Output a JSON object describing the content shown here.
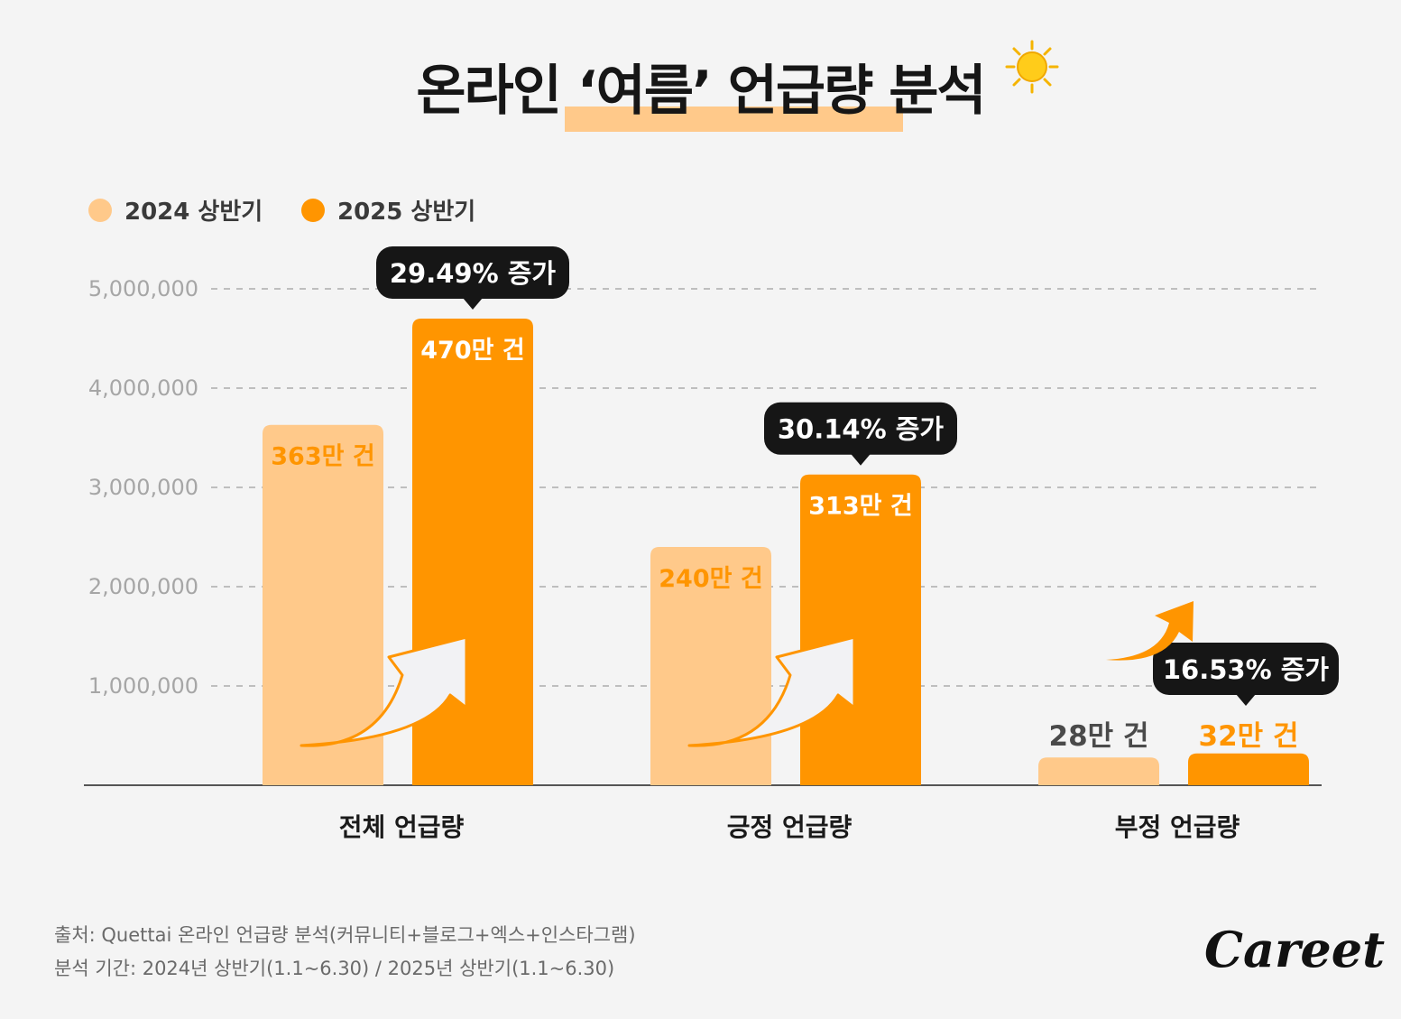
{
  "title": "온라인 ‘여름’ 언급량 분석",
  "colors": {
    "y2024": "#ffc98a",
    "y2025": "#ff9500",
    "dark": "#161616",
    "grid": "#9e9e9e",
    "highlight": "#ffc98a"
  },
  "legend": [
    {
      "label": "2024 상반기",
      "color": "#ffc98a"
    },
    {
      "label": "2025 상반기",
      "color": "#ff9500"
    }
  ],
  "chart_data": {
    "type": "bar",
    "title": "온라인 ‘여름’ 언급량 분석",
    "categories": [
      "전체 언급량",
      "긍정 언급량",
      "부정 언급량"
    ],
    "series": [
      {
        "name": "2024 상반기",
        "values": [
          3630000,
          2400000,
          280000
        ],
        "labels": [
          "363만 건",
          "240만 건",
          "28만 건"
        ]
      },
      {
        "name": "2025 상반기",
        "values": [
          4700000,
          3130000,
          320000
        ],
        "labels": [
          "470만 건",
          "313만 건",
          "32만 건"
        ]
      }
    ],
    "callouts": [
      "29.49% 증가",
      "30.14% 증가",
      "16.53% 증가"
    ],
    "yticks": [
      "1,000,000",
      "2,000,000",
      "3,000,000",
      "4,000,000",
      "5,000,000"
    ],
    "ylim": [
      0,
      5000000
    ],
    "grid": true,
    "legend_position": "top-left"
  },
  "source": {
    "line1": "출처: Quettai 온라인 언급량 분석(커뮤니티+블로그+엑스+인스타그램)",
    "line2": "분석 기간: 2024년 상반기(1.1~6.30) / 2025년 상반기(1.1~6.30)"
  },
  "logo": "Careet",
  "icons": {
    "sun": "sun-icon",
    "arrow": "up-right-arrow-icon"
  }
}
